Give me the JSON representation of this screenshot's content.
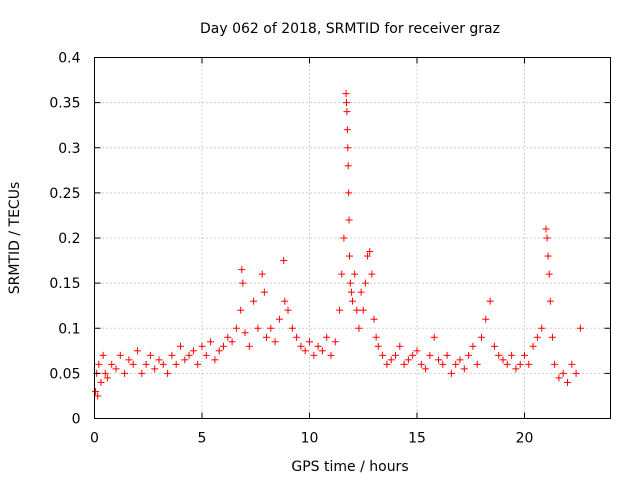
{
  "chart_data": {
    "type": "scatter",
    "title": "Day 062 of 2018, SRMTID for receiver graz",
    "xlabel": "GPS time / hours",
    "ylabel": "SRMTID / TECUs",
    "xlim": [
      0,
      24
    ],
    "ylim": [
      0,
      0.4
    ],
    "x_ticks": [
      0,
      5,
      10,
      15,
      20
    ],
    "x_tick_labels": [
      "0",
      "5",
      "10",
      "15",
      "20"
    ],
    "y_ticks": [
      0,
      0.05,
      0.1,
      0.15,
      0.2,
      0.25,
      0.3,
      0.35,
      0.4
    ],
    "y_tick_labels": [
      "0",
      "0.05",
      "0.1",
      "0.15",
      "0.2",
      "0.25",
      "0.3",
      "0.35",
      "0.4"
    ],
    "grid": true,
    "marker": "+",
    "series_color": "#ff0000",
    "series": [
      {
        "name": "SRMTID",
        "x": [
          0.05,
          0.1,
          0.15,
          0.2,
          0.3,
          0.4,
          0.5,
          0.6,
          0.8,
          1.0,
          1.2,
          1.4,
          1.6,
          1.8,
          2.0,
          2.2,
          2.4,
          2.6,
          2.8,
          3.0,
          3.2,
          3.4,
          3.6,
          3.8,
          4.0,
          4.2,
          4.4,
          4.6,
          4.8,
          5.0,
          5.2,
          5.4,
          5.6,
          5.8,
          6.0,
          6.2,
          6.4,
          6.6,
          6.8,
          6.85,
          6.9,
          7.0,
          7.2,
          7.4,
          7.6,
          7.8,
          7.9,
          8.0,
          8.2,
          8.4,
          8.6,
          8.8,
          8.85,
          9.0,
          9.2,
          9.4,
          9.6,
          9.8,
          10.0,
          10.2,
          10.4,
          10.6,
          10.8,
          11.0,
          11.2,
          11.4,
          11.5,
          11.6,
          11.7,
          11.72,
          11.74,
          11.76,
          11.78,
          11.8,
          11.82,
          11.84,
          11.86,
          11.9,
          11.95,
          12.0,
          12.1,
          12.2,
          12.3,
          12.4,
          12.5,
          12.6,
          12.7,
          12.8,
          12.9,
          13.0,
          13.1,
          13.2,
          13.4,
          13.6,
          13.8,
          14.0,
          14.2,
          14.4,
          14.6,
          14.8,
          15.0,
          15.2,
          15.4,
          15.6,
          15.8,
          16.0,
          16.2,
          16.4,
          16.6,
          16.8,
          17.0,
          17.2,
          17.4,
          17.6,
          17.8,
          18.0,
          18.2,
          18.4,
          18.6,
          18.8,
          19.0,
          19.2,
          19.4,
          19.6,
          19.8,
          20.0,
          20.2,
          20.4,
          20.6,
          20.8,
          21.0,
          21.05,
          21.1,
          21.15,
          21.2,
          21.3,
          21.4,
          21.6,
          21.8,
          22.0,
          22.2,
          22.4,
          22.6
        ],
        "y": [
          0.03,
          0.05,
          0.025,
          0.06,
          0.04,
          0.07,
          0.05,
          0.045,
          0.06,
          0.055,
          0.07,
          0.05,
          0.065,
          0.06,
          0.075,
          0.05,
          0.06,
          0.07,
          0.055,
          0.065,
          0.06,
          0.05,
          0.07,
          0.06,
          0.08,
          0.065,
          0.07,
          0.075,
          0.06,
          0.08,
          0.07,
          0.085,
          0.065,
          0.075,
          0.08,
          0.09,
          0.085,
          0.1,
          0.12,
          0.165,
          0.15,
          0.095,
          0.08,
          0.13,
          0.1,
          0.16,
          0.14,
          0.09,
          0.1,
          0.085,
          0.11,
          0.175,
          0.13,
          0.12,
          0.1,
          0.09,
          0.08,
          0.075,
          0.085,
          0.07,
          0.08,
          0.075,
          0.09,
          0.07,
          0.085,
          0.12,
          0.16,
          0.2,
          0.36,
          0.35,
          0.34,
          0.32,
          0.3,
          0.28,
          0.25,
          0.22,
          0.18,
          0.15,
          0.14,
          0.13,
          0.16,
          0.12,
          0.1,
          0.14,
          0.12,
          0.15,
          0.18,
          0.185,
          0.16,
          0.11,
          0.09,
          0.08,
          0.07,
          0.06,
          0.065,
          0.07,
          0.08,
          0.06,
          0.065,
          0.07,
          0.075,
          0.06,
          0.055,
          0.07,
          0.09,
          0.065,
          0.06,
          0.07,
          0.05,
          0.06,
          0.065,
          0.055,
          0.07,
          0.08,
          0.06,
          0.09,
          0.11,
          0.13,
          0.08,
          0.07,
          0.065,
          0.06,
          0.07,
          0.055,
          0.06,
          0.07,
          0.06,
          0.08,
          0.09,
          0.1,
          0.21,
          0.2,
          0.18,
          0.16,
          0.13,
          0.09,
          0.06,
          0.045,
          0.05,
          0.04,
          0.06,
          0.05,
          0.1
        ]
      }
    ]
  }
}
